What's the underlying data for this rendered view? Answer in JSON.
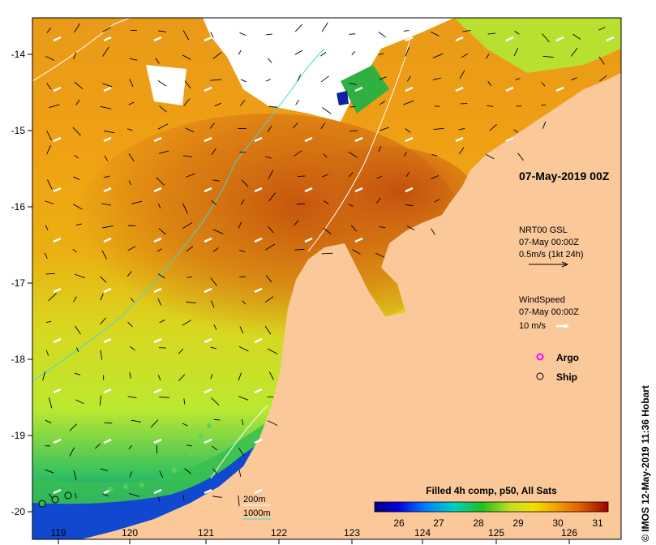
{
  "map": {
    "lat_ticks": [
      "-14",
      "-15",
      "-16",
      "-17",
      "-18",
      "-19",
      "-20"
    ],
    "lon_ticks": [
      "119",
      "120",
      "121",
      "122",
      "123",
      "124",
      "125",
      "126"
    ]
  },
  "annotations": {
    "date_label": "07-May-2019 00Z"
  },
  "current_legend": {
    "title": "NRT00 GSL",
    "time": "07-May 00:00Z",
    "scale": "0.5m/s (1kt 24h)"
  },
  "wind_legend": {
    "title": "WindSpeed",
    "time": "07-May 00:00Z",
    "scale": "10 m/s"
  },
  "symbols": {
    "argo": "Argo",
    "ship": "Ship"
  },
  "isobaths": {
    "shallow": "200m",
    "deep": "1000m"
  },
  "colorbar": {
    "title": "Filled 4h comp, p50, All Sats",
    "ticks": [
      "26",
      "27",
      "28",
      "29",
      "30",
      "31"
    ]
  },
  "credit": "© IMOS 12-May-2019 11:36 Hobart",
  "colors": {
    "land": "#fbc89a",
    "isobath_200": "#ffffff",
    "isobath_1000": "#40d8d8",
    "argo": "#ff00ff",
    "sst_hot": "#c0500a",
    "sst_warm": "#e8a010",
    "sst_mid": "#c8e828",
    "sst_cool": "#10b060",
    "sst_cold": "#0030c0"
  }
}
